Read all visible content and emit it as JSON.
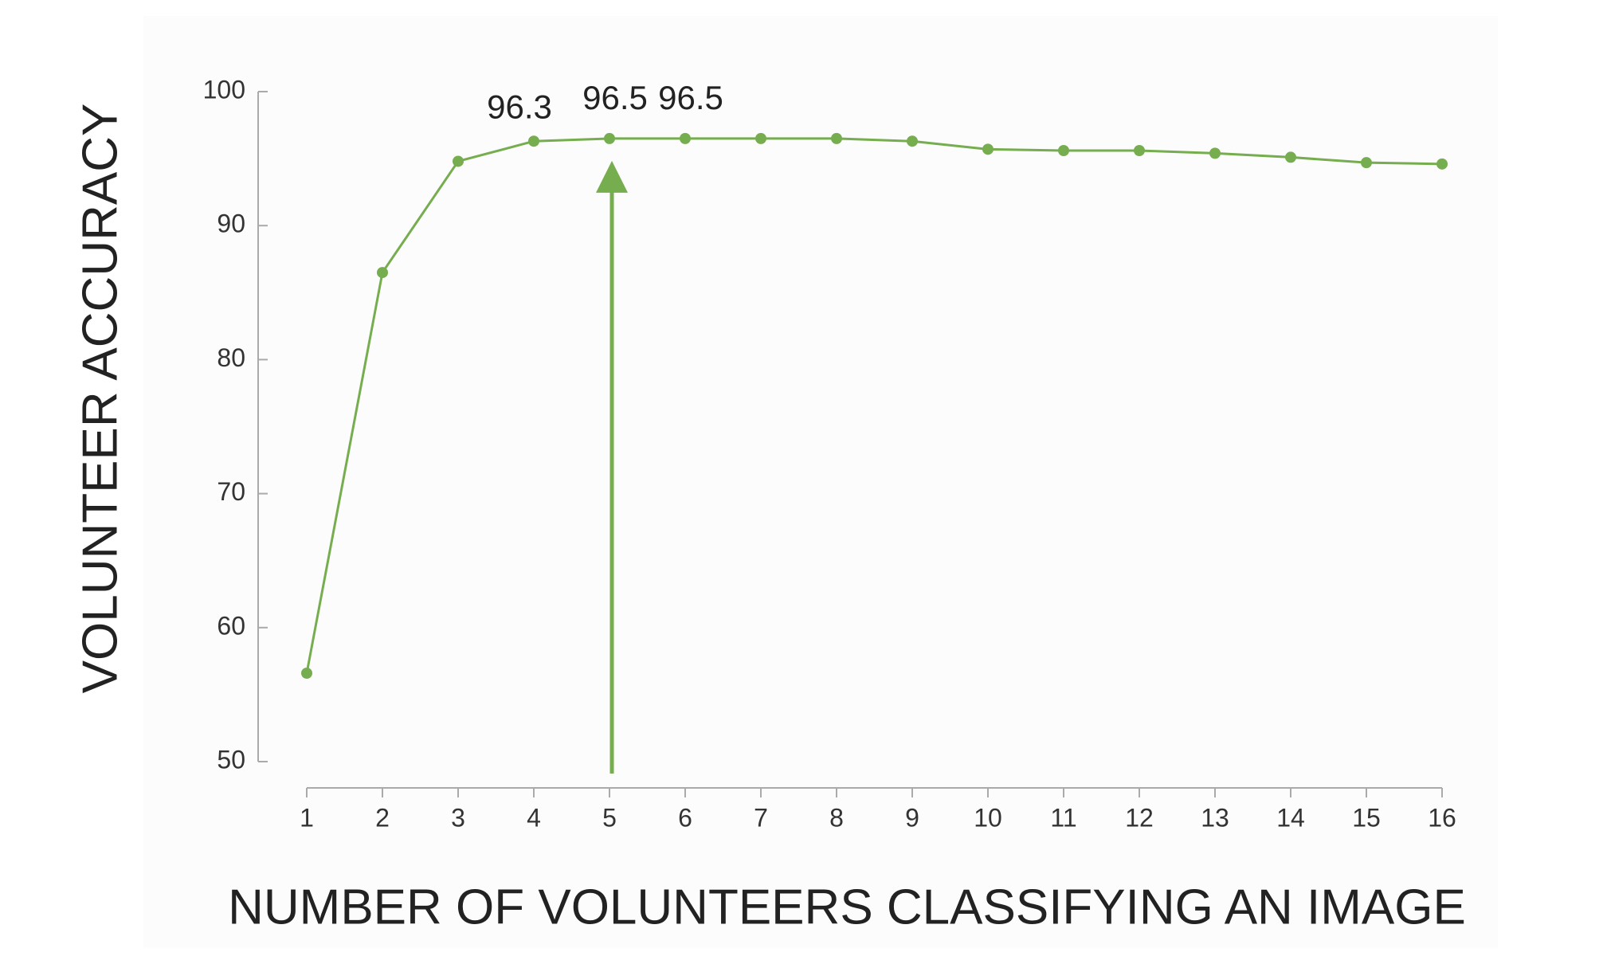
{
  "chart_data": {
    "type": "line",
    "x_label": "NUMBER OF VOLUNTEERS CLASSIFYING AN IMAGE",
    "y_label": "VOLUNTEER ACCURACY",
    "x": [
      1,
      2,
      3,
      4,
      5,
      6,
      7,
      8,
      9,
      10,
      11,
      12,
      13,
      14,
      15,
      16
    ],
    "series": [
      {
        "name": "Volunteer accuracy",
        "color": "#76ad4f",
        "values": [
          56.6,
          86.5,
          94.8,
          96.3,
          96.5,
          96.5,
          96.5,
          96.5,
          96.3,
          95.7,
          95.6,
          95.6,
          95.4,
          95.1,
          94.7,
          94.6
        ],
        "value_labels": [
          null,
          null,
          null,
          "96.3",
          "96.5",
          "96.5",
          null,
          null,
          null,
          null,
          null,
          null,
          null,
          null,
          null,
          null
        ]
      }
    ],
    "xlim": [
      1,
      16
    ],
    "xticks": [
      1,
      2,
      3,
      4,
      5,
      6,
      7,
      8,
      9,
      10,
      11,
      12,
      13,
      14,
      15,
      16
    ],
    "ylim": [
      50,
      100
    ],
    "yticks": [
      50,
      60,
      70,
      80,
      90,
      100
    ],
    "grid": false,
    "arrow": {
      "x": 5,
      "color": "#76ad4f"
    }
  }
}
